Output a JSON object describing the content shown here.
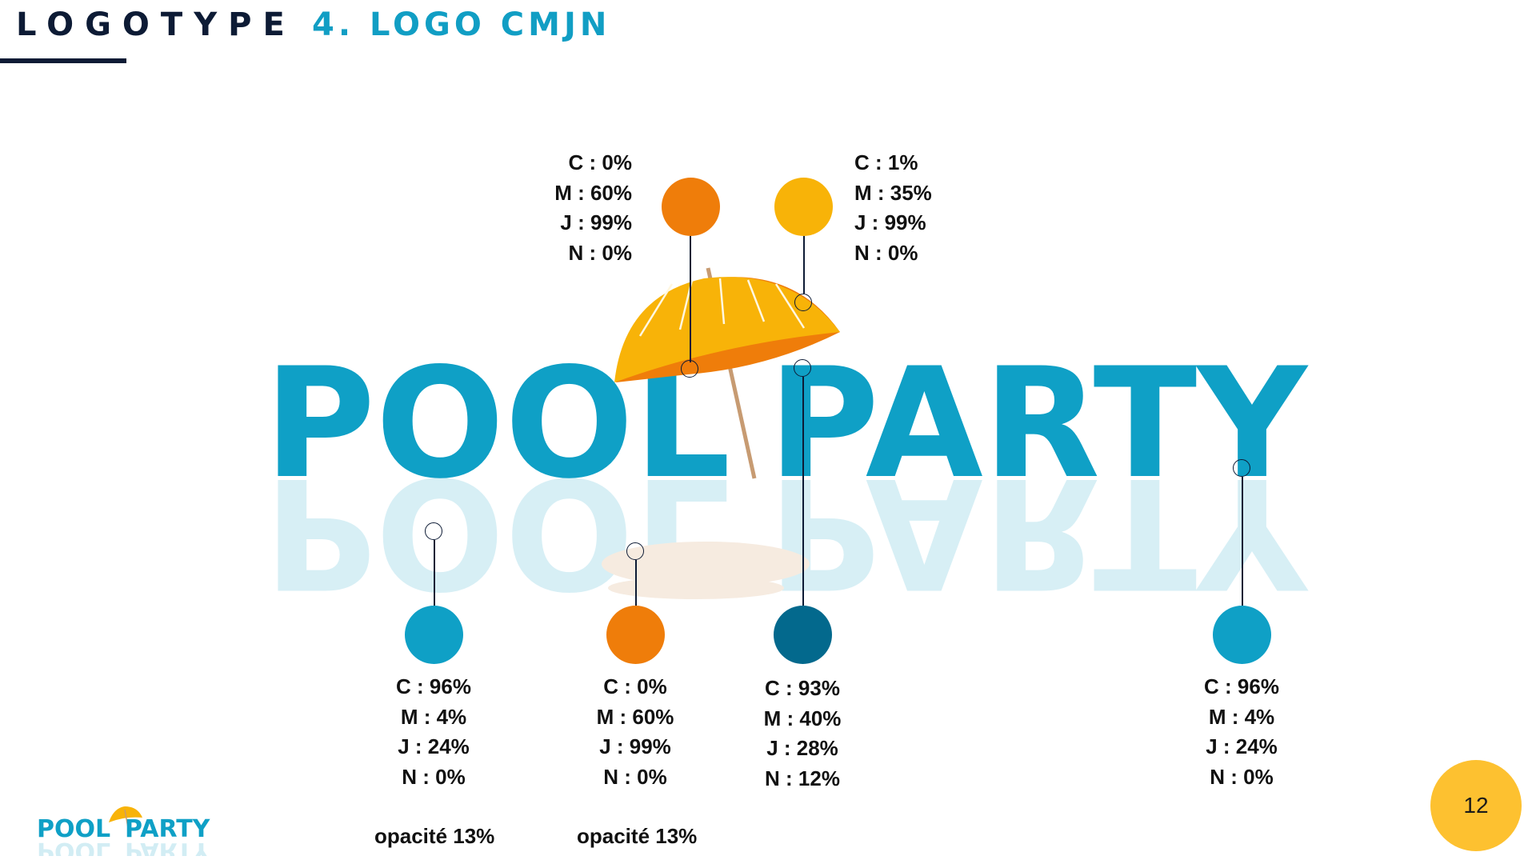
{
  "header": {
    "label": "LOGOTYPE",
    "title": "4. LOGO CMJN"
  },
  "logo": {
    "word_left": "POOL",
    "word_right": "PARTY",
    "small_word_left": "POOL",
    "small_word_right": "PARTY"
  },
  "colors": {
    "cyan": "#0fa0c6",
    "dark_blue": "#03698d",
    "orange": "#ef7d0a",
    "yellow": "#f8b308",
    "reflection": "#dff1f6",
    "sand": "#f6ebe0",
    "badge": "#fdc130"
  },
  "swatches": {
    "top_left": {
      "c": "C : 0%",
      "m": "M : 60%",
      "j": "J : 99%",
      "n": "N : 0%",
      "color": "#ef7d0a"
    },
    "top_right": {
      "c": "C : 1%",
      "m": "M : 35%",
      "j": "J : 99%",
      "n": "N : 0%",
      "color": "#f8b308"
    },
    "bottom_1": {
      "c": "C : 96%",
      "m": "M : 4%",
      "j": "J : 24%",
      "n": "N : 0%",
      "color": "#0fa0c6",
      "note": "opacité 13%"
    },
    "bottom_2": {
      "c": "C : 0%",
      "m": "M : 60%",
      "j": "J : 99%",
      "n": "N : 0%",
      "color": "#ef7d0a",
      "note": "opacité 13%"
    },
    "bottom_3": {
      "c": "C : 93%",
      "m": "M : 40%",
      "j": "J : 28%",
      "n": "N : 12%",
      "color": "#03698d"
    },
    "bottom_4": {
      "c": "C : 96%",
      "m": "M : 4%",
      "j": "J : 24%",
      "n": "N : 0%",
      "color": "#0fa0c6"
    }
  },
  "page_number": "12"
}
